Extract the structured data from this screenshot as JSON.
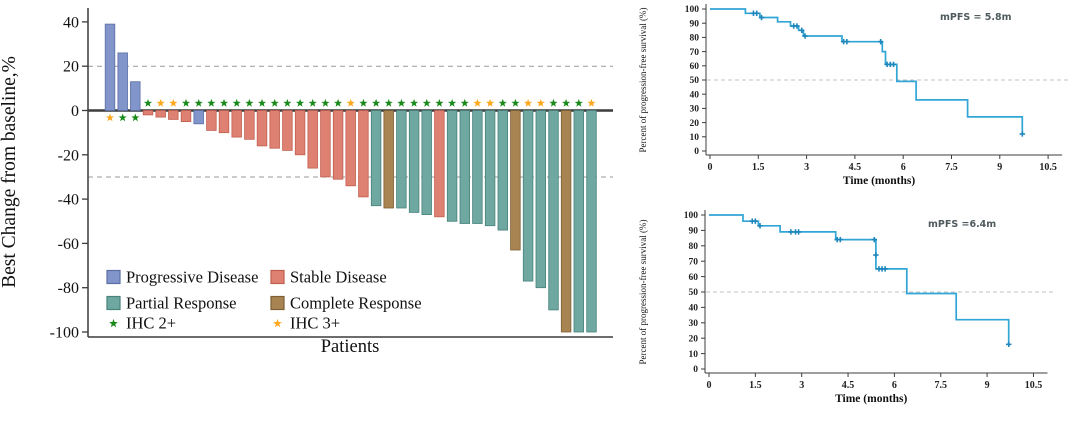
{
  "style": {
    "axis_color": "#3c3c3c",
    "zero_line_color": "#3c3c3c",
    "ref_line_color": "#9a9a9a",
    "median_line_color": "#c2c2c2",
    "km_line_color": "#31a5d6",
    "km_censor_color": "#1d87bc",
    "annotation_color": "#4f5a5e",
    "response_colors": {
      "Progressive Disease": {
        "fill": "#8295cb",
        "stroke": "#5b6ea5"
      },
      "Stable Disease": {
        "fill": "#de8172",
        "stroke": "#c05f4e"
      },
      "Partial Response": {
        "fill": "#6fa7a1",
        "stroke": "#48837c"
      },
      "Complete Response": {
        "fill": "#a98453",
        "stroke": "#7d5f33"
      }
    },
    "ihc_colors": {
      "IHC 2+": "#1a8a1a",
      "IHC 3+": "#ffa81e"
    }
  },
  "chart_data": [
    {
      "type": "bar",
      "subtype": "waterfall",
      "ylabel": "Best Change from baseline,%",
      "xlabel": "Patients",
      "ylim": [
        -100,
        45
      ],
      "yticks": [
        40,
        20,
        0,
        -20,
        -40,
        -60,
        -80,
        -100
      ],
      "reference_lines": [
        20,
        -30
      ],
      "grid": "off",
      "legend_position": "inside-bottom-left",
      "legend": [
        {
          "label": "Progressive Disease",
          "kind": "square",
          "key": "Progressive Disease"
        },
        {
          "label": "Stable Disease",
          "kind": "square",
          "key": "Stable Disease"
        },
        {
          "label": "Partial Response",
          "kind": "square",
          "key": "Partial Response"
        },
        {
          "label": "Complete Response",
          "kind": "square",
          "key": "Complete Response"
        },
        {
          "label": "IHC 2+",
          "kind": "star",
          "key": "IHC 2+"
        },
        {
          "label": "IHC 3+",
          "kind": "star",
          "key": "IHC 3+"
        }
      ],
      "patients": [
        {
          "value": 39,
          "response": "Progressive Disease",
          "ihc": "IHC 3+"
        },
        {
          "value": 26,
          "response": "Progressive Disease",
          "ihc": "IHC 2+"
        },
        {
          "value": 13,
          "response": "Progressive Disease",
          "ihc": "IHC 2+"
        },
        {
          "value": -2,
          "response": "Stable Disease",
          "ihc": "IHC 2+"
        },
        {
          "value": -3,
          "response": "Stable Disease",
          "ihc": "IHC 3+"
        },
        {
          "value": -4,
          "response": "Stable Disease",
          "ihc": "IHC 3+"
        },
        {
          "value": -5,
          "response": "Stable Disease",
          "ihc": "IHC 2+"
        },
        {
          "value": -6,
          "response": "Progressive Disease",
          "ihc": "IHC 2+"
        },
        {
          "value": -9,
          "response": "Stable Disease",
          "ihc": "IHC 2+"
        },
        {
          "value": -10,
          "response": "Stable Disease",
          "ihc": "IHC 2+"
        },
        {
          "value": -12,
          "response": "Stable Disease",
          "ihc": "IHC 2+"
        },
        {
          "value": -13,
          "response": "Stable Disease",
          "ihc": "IHC 2+"
        },
        {
          "value": -16,
          "response": "Stable Disease",
          "ihc": "IHC 2+"
        },
        {
          "value": -17,
          "response": "Stable Disease",
          "ihc": "IHC 2+"
        },
        {
          "value": -18,
          "response": "Stable Disease",
          "ihc": "IHC 2+"
        },
        {
          "value": -20,
          "response": "Stable Disease",
          "ihc": "IHC 2+"
        },
        {
          "value": -26,
          "response": "Stable Disease",
          "ihc": "IHC 2+"
        },
        {
          "value": -30,
          "response": "Stable Disease",
          "ihc": "IHC 2+"
        },
        {
          "value": -31,
          "response": "Stable Disease",
          "ihc": "IHC 2+"
        },
        {
          "value": -34,
          "response": "Stable Disease",
          "ihc": "IHC 3+"
        },
        {
          "value": -39,
          "response": "Stable Disease",
          "ihc": "IHC 2+"
        },
        {
          "value": -43,
          "response": "Partial Response",
          "ihc": "IHC 2+"
        },
        {
          "value": -44,
          "response": "Complete Response",
          "ihc": "IHC 2+"
        },
        {
          "value": -44,
          "response": "Partial Response",
          "ihc": "IHC 2+"
        },
        {
          "value": -46,
          "response": "Partial Response",
          "ihc": "IHC 2+"
        },
        {
          "value": -47,
          "response": "Partial Response",
          "ihc": "IHC 2+"
        },
        {
          "value": -48,
          "response": "Stable Disease",
          "ihc": "IHC 2+"
        },
        {
          "value": -50,
          "response": "Partial Response",
          "ihc": "IHC 2+"
        },
        {
          "value": -51,
          "response": "Partial Response",
          "ihc": "IHC 2+"
        },
        {
          "value": -51,
          "response": "Partial Response",
          "ihc": "IHC 3+"
        },
        {
          "value": -52,
          "response": "Partial Response",
          "ihc": "IHC 3+"
        },
        {
          "value": -54,
          "response": "Partial Response",
          "ihc": "IHC 2+"
        },
        {
          "value": -63,
          "response": "Complete Response",
          "ihc": "IHC 2+"
        },
        {
          "value": -77,
          "response": "Partial Response",
          "ihc": "IHC 3+"
        },
        {
          "value": -80,
          "response": "Partial Response",
          "ihc": "IHC 3+"
        },
        {
          "value": -90,
          "response": "Partial Response",
          "ihc": "IHC 2+"
        },
        {
          "value": -100,
          "response": "Complete Response",
          "ihc": "IHC 2+"
        },
        {
          "value": -100,
          "response": "Partial Response",
          "ihc": "IHC 2+"
        },
        {
          "value": -100,
          "response": "Partial Response",
          "ihc": "IHC 3+"
        }
      ]
    },
    {
      "type": "line",
      "subtype": "kaplan-meier",
      "annotation": "mPFS = 5.8m",
      "ylabel": "Percent of progression-free survival (%)",
      "xlabel": "Time (months)",
      "yticks": [
        0,
        10,
        20,
        30,
        40,
        50,
        60,
        70,
        80,
        90,
        100
      ],
      "xticks": [
        0,
        1.5,
        3,
        4.5,
        6,
        7.5,
        9,
        10.5
      ],
      "ylim": [
        0,
        100
      ],
      "xlim": [
        0,
        10.5
      ],
      "median_line": 50,
      "steps": [
        [
          0,
          100
        ],
        [
          1.1,
          100
        ],
        [
          1.1,
          97
        ],
        [
          1.55,
          97
        ],
        [
          1.55,
          94
        ],
        [
          2.1,
          94
        ],
        [
          2.1,
          91
        ],
        [
          2.5,
          91
        ],
        [
          2.5,
          88
        ],
        [
          2.75,
          88
        ],
        [
          2.75,
          85
        ],
        [
          2.9,
          85
        ],
        [
          2.9,
          81
        ],
        [
          4.1,
          81
        ],
        [
          4.1,
          77
        ],
        [
          5.35,
          77
        ],
        [
          5.35,
          70
        ],
        [
          5.45,
          70
        ],
        [
          5.45,
          61
        ],
        [
          5.8,
          61
        ],
        [
          5.8,
          49
        ],
        [
          6.4,
          49
        ],
        [
          6.4,
          36
        ],
        [
          8.0,
          36
        ],
        [
          8.0,
          24
        ],
        [
          9.7,
          24
        ],
        [
          9.7,
          12
        ]
      ],
      "censors": [
        [
          1.35,
          97
        ],
        [
          1.45,
          97
        ],
        [
          1.6,
          94
        ],
        [
          2.6,
          88
        ],
        [
          2.7,
          88
        ],
        [
          2.85,
          85
        ],
        [
          2.95,
          81
        ],
        [
          4.15,
          77
        ],
        [
          4.25,
          77
        ],
        [
          5.3,
          77
        ],
        [
          5.5,
          61
        ],
        [
          5.6,
          61
        ],
        [
          5.7,
          61
        ],
        [
          9.7,
          12
        ]
      ]
    },
    {
      "type": "line",
      "subtype": "kaplan-meier",
      "annotation": "mPFS =6.4m",
      "ylabel": "Percent of progression-free survival (%)",
      "xlabel": "Time (months)",
      "yticks": [
        0,
        10,
        20,
        30,
        40,
        50,
        60,
        70,
        80,
        90,
        100
      ],
      "xticks": [
        0,
        1.5,
        3,
        4.5,
        6,
        7.5,
        9,
        10.5
      ],
      "ylim": [
        0,
        100
      ],
      "xlim": [
        0,
        10.5
      ],
      "median_line": 50,
      "steps": [
        [
          0,
          100
        ],
        [
          1.1,
          100
        ],
        [
          1.1,
          96
        ],
        [
          1.6,
          96
        ],
        [
          1.6,
          93
        ],
        [
          2.3,
          93
        ],
        [
          2.3,
          89
        ],
        [
          4.1,
          89
        ],
        [
          4.1,
          84
        ],
        [
          5.4,
          84
        ],
        [
          5.4,
          65
        ],
        [
          6.4,
          65
        ],
        [
          6.4,
          49
        ],
        [
          8.0,
          49
        ],
        [
          8.0,
          32
        ],
        [
          9.7,
          32
        ],
        [
          9.7,
          16
        ]
      ],
      "censors": [
        [
          1.4,
          96
        ],
        [
          1.5,
          96
        ],
        [
          1.65,
          93
        ],
        [
          2.65,
          89
        ],
        [
          2.8,
          89
        ],
        [
          2.9,
          89
        ],
        [
          4.15,
          84
        ],
        [
          4.25,
          84
        ],
        [
          5.35,
          84
        ],
        [
          5.4,
          74
        ],
        [
          5.5,
          65
        ],
        [
          5.6,
          65
        ],
        [
          5.7,
          65
        ],
        [
          9.7,
          16
        ]
      ]
    }
  ]
}
